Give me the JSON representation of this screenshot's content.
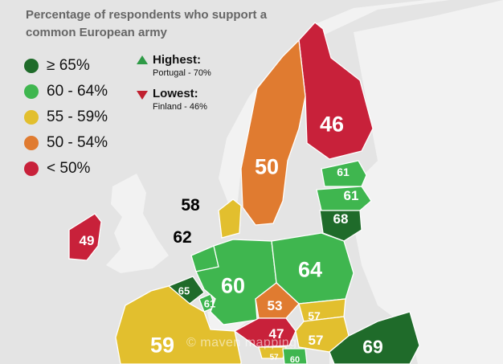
{
  "title": "Percentage of respondents who support a common European army",
  "legend": [
    {
      "label": "≥ 65%",
      "color": "#1f6b2a"
    },
    {
      "label": "60 - 64%",
      "color": "#3fb64f"
    },
    {
      "label": "55 - 59%",
      "color": "#e2bf2e"
    },
    {
      "label": "50 - 54%",
      "color": "#e07b30"
    },
    {
      "label": "< 50%",
      "color": "#c8213a"
    }
  ],
  "highest": {
    "label": "Highest:",
    "detail": "Portugal - 70%"
  },
  "lowest": {
    "label": "Lowest:",
    "detail": "Finland - 46%"
  },
  "values": {
    "finland": "46",
    "sweden": "50",
    "estonia": "61",
    "latvia": "61",
    "lithuania": "68",
    "denmark": "58",
    "netherlands": "62",
    "ireland": "49",
    "belgium": "65",
    "luxembourg": "61",
    "germany": "60",
    "poland": "64",
    "czechia": "53",
    "slovakia": "57",
    "hungary": "57",
    "austria": "47",
    "romania": "69",
    "france": "59",
    "slovenia": "57",
    "croatia": "60"
  },
  "watermark": "© maven mapping"
}
